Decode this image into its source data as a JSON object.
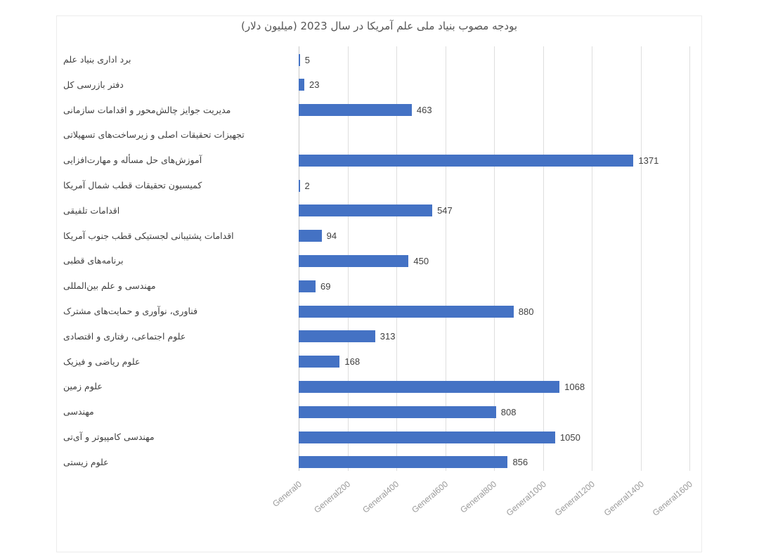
{
  "chart": {
    "title": "بودجه مصوب بنیاد ملی علم آمریکا در سال 2023 (میلیون دلار)",
    "bar_color": "#4472C4",
    "gridline_color": "#DEDEDE"
  },
  "chart_data": {
    "type": "bar",
    "orientation": "horizontal",
    "title": "بودجه مصوب بنیاد ملی علم آمریکا در سال 2023 (میلیون دلار)",
    "xlabel": "",
    "ylabel": "",
    "xlim": [
      0,
      1600
    ],
    "grid": true,
    "legend": "none",
    "x_ticks": [
      0,
      200,
      400,
      600,
      800,
      1000,
      1200,
      1400,
      1600
    ],
    "x_tick_labels": [
      "General0",
      "General200",
      "General400",
      "General600",
      "General800",
      "General1000",
      "General1200",
      "General1400",
      "General1600"
    ],
    "categories": [
      "برد اداری بنیاد علم",
      "دفتر بازرسی کل",
      "مدیریت جوایز چالش‌محور و اقدامات سازمانی",
      "تجهیزات تحقیقات اصلی و زیرساخت‌های تسهیلاتی",
      "آموزش‌های حل مسأله و مهارت‌افزایی",
      "کمیسیون تحقیقات قطب شمال آمریکا",
      "اقدامات تلفیقی",
      "اقدامات  پشتیبانی لجستیکی قطب جنوب آمریکا",
      "برنامه‌های قطبی",
      "مهندسی و علم بین‌المللی",
      "فناوری، نوآوری و حمایت‌های مشترک",
      "علوم اجتماعی، رفتاری و اقتصادی",
      "علوم ریاضی و فیزیک",
      "علوم زمین",
      "مهندسی",
      "مهندسی کامپیوتر و  آی‌تی",
      "علوم زیستی"
    ],
    "values": [
      5,
      23,
      463,
      null,
      1371,
      2,
      547,
      94,
      450,
      69,
      880,
      313,
      168,
      1068,
      808,
      1050,
      856
    ],
    "value_labels": [
      "5",
      "23",
      "463",
      "",
      "1371",
      "2",
      "547",
      "94",
      "450",
      "69",
      "880",
      "313",
      "168",
      "1068",
      "808",
      "1050",
      "856"
    ]
  }
}
